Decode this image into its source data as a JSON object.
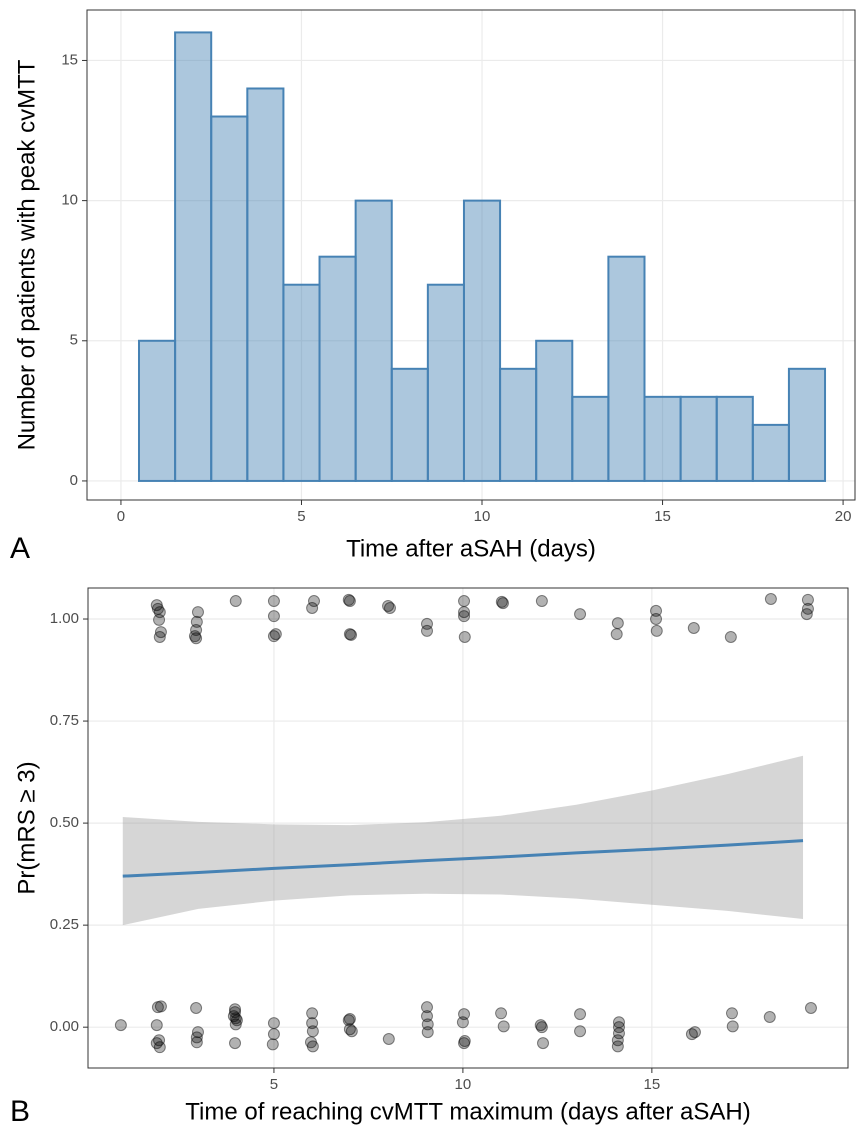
{
  "chart_data": [
    {
      "type": "histogram",
      "panel_label": "A",
      "x_label": "Time after aSAH (days)",
      "y_label": "Number of patients with peak cvMTT",
      "bins": [
        0.5,
        1.5,
        2.5,
        3.5,
        4.5,
        5.5,
        6.5,
        7.5,
        8.5,
        9.5,
        10.5,
        11.5,
        12.5,
        13.5,
        14.5,
        15.5,
        16.5,
        17.5,
        18.5,
        19.5
      ],
      "values": [
        5,
        16,
        13,
        14,
        7,
        8,
        10,
        4,
        7,
        10,
        4,
        5,
        3,
        8,
        3,
        3,
        3,
        2,
        4
      ],
      "color": "#4682b4",
      "xlim": [
        -0.94,
        20.33
      ],
      "ylim": [
        -0.68,
        16.8
      ],
      "xticks": [
        0,
        5,
        10,
        15,
        20
      ],
      "yticks": [
        0,
        5,
        10,
        15
      ],
      "grid": true
    },
    {
      "type": "scatter",
      "panel_label": "B",
      "x_label": "Time of reaching cvMTT maximum (days after aSAH)",
      "y_label": "Pr(mRS ≥ 3)",
      "points": {
        "color": "#000000",
        "x": [
          1.9,
          1.93,
          1.98,
          1.96,
          2.01,
          1.98,
          2.99,
          2.96,
          2.94,
          2.91,
          2.94,
          3.99,
          5.0,
          5.0,
          5.0,
          5.05,
          6.01,
          6.06,
          6.98,
          7.01,
          7.01,
          7.04,
          8.02,
          8.07,
          9.05,
          9.05,
          10.03,
          10.03,
          10.03,
          10.05,
          11.03,
          11.06,
          12.09,
          13.1,
          14.1,
          14.07,
          15.11,
          15.11,
          15.13,
          16.11,
          17.09,
          18.15,
          19.13,
          19.13,
          19.1,
          0.95,
          1.93,
          2.01,
          1.9,
          1.96,
          1.9,
          1.98,
          2.94,
          2.99,
          2.96,
          2.96,
          3.97,
          3.97,
          3.94,
          3.99,
          4.02,
          3.99,
          3.97,
          5.0,
          5.0,
          4.97,
          6.01,
          6.01,
          6.03,
          5.98,
          6.03,
          7.01,
          6.98,
          7.01,
          7.06,
          8.04,
          9.05,
          9.05,
          9.07,
          9.07,
          10.0,
          10.03,
          10.05,
          10.03,
          11.01,
          11.08,
          12.06,
          12.09,
          12.12,
          13.1,
          13.1,
          14.13,
          14.13,
          14.13,
          14.1,
          14.1,
          16.14,
          16.06,
          17.12,
          17.14,
          18.12,
          19.21
        ],
        "values": [
          1.034,
          1.025,
          1.017,
          0.998,
          0.968,
          0.956,
          1.017,
          0.993,
          0.973,
          0.958,
          0.953,
          1.044,
          1.044,
          1.007,
          0.958,
          0.963,
          1.027,
          1.044,
          1.047,
          1.044,
          0.963,
          0.961,
          1.032,
          1.027,
          0.988,
          0.971,
          1.044,
          1.017,
          1.007,
          0.956,
          1.042,
          1.039,
          1.044,
          1.012,
          0.99,
          0.963,
          1.02,
          1.0,
          0.971,
          0.978,
          0.956,
          1.049,
          1.047,
          1.025,
          1.012,
          0.005,
          0.049,
          0.051,
          0.005,
          -0.032,
          -0.039,
          -0.049,
          0.047,
          -0.012,
          -0.025,
          -0.037,
          0.044,
          0.037,
          0.027,
          0.022,
          0.017,
          0.007,
          -0.039,
          0.01,
          -0.017,
          -0.042,
          0.034,
          0.01,
          -0.01,
          -0.037,
          -0.047,
          0.02,
          0.017,
          -0.005,
          -0.01,
          -0.029,
          0.049,
          0.027,
          0.007,
          -0.012,
          0.012,
          0.032,
          -0.034,
          -0.039,
          0.034,
          0.002,
          0.005,
          0,
          -0.039,
          0.032,
          -0.01,
          0.012,
          0,
          -0.015,
          -0.032,
          -0.047,
          -0.012,
          -0.017,
          0.034,
          0.002,
          0.025,
          0.047
        ]
      },
      "fit": {
        "color": "#4682b4",
        "band_color": "#999999",
        "x": [
          1,
          3,
          5,
          7,
          9,
          11,
          13,
          15,
          17,
          19
        ],
        "values": [
          0.37,
          0.379,
          0.389,
          0.398,
          0.408,
          0.417,
          0.427,
          0.436,
          0.446,
          0.457
        ],
        "upper": [
          0.515,
          0.503,
          0.497,
          0.495,
          0.502,
          0.518,
          0.545,
          0.58,
          0.62,
          0.665
        ],
        "lower": [
          0.25,
          0.29,
          0.31,
          0.323,
          0.327,
          0.325,
          0.315,
          0.3,
          0.285,
          0.265
        ]
      },
      "xlim": [
        0.08,
        20.19
      ],
      "ylim": [
        -0.1,
        1.076
      ],
      "xticks": [
        5,
        10,
        15
      ],
      "yticks": [
        {
          "value": 0,
          "label": "0.00"
        },
        {
          "value": 0.25,
          "label": "0.25"
        },
        {
          "value": 0.5,
          "label": "0.50"
        },
        {
          "value": 0.75,
          "label": "0.75"
        },
        {
          "value": 1,
          "label": "1.00"
        }
      ],
      "grid": true
    }
  ]
}
